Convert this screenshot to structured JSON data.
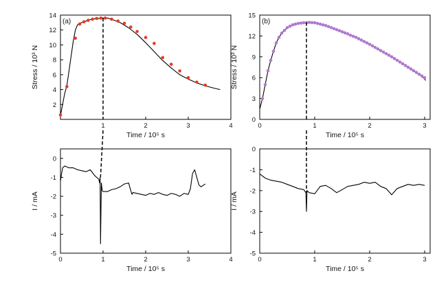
{
  "chart_data": [
    {
      "id": "a-stress",
      "type": "line",
      "panel_label": "(a)",
      "xlabel": "Time / 10⁵ s",
      "ylabel": "Stress / 10³ N",
      "xlim": [
        0,
        4
      ],
      "ylim": [
        0,
        14
      ],
      "xticks": [
        1,
        2,
        3,
        4
      ],
      "yticks": [
        2,
        4,
        6,
        8,
        10,
        12,
        14
      ],
      "series": [
        {
          "role": "curve",
          "color": "#000000",
          "x": [
            0,
            0.05,
            0.1,
            0.15,
            0.2,
            0.25,
            0.3,
            0.35,
            0.4,
            0.5,
            0.6,
            0.7,
            0.8,
            0.9,
            1.0,
            1.1,
            1.2,
            1.4,
            1.6,
            1.8,
            2.0,
            2.2,
            2.4,
            2.6,
            2.8,
            3.0,
            3.2,
            3.4,
            3.6,
            3.75
          ],
          "y": [
            0.5,
            2.0,
            3.5,
            4.5,
            6.5,
            8.5,
            10.5,
            12.0,
            12.7,
            13.0,
            13.2,
            13.4,
            13.5,
            13.55,
            13.6,
            13.6,
            13.45,
            13.0,
            12.3,
            11.4,
            10.3,
            9.1,
            7.9,
            6.9,
            6.0,
            5.4,
            4.9,
            4.5,
            4.2,
            4.0
          ]
        },
        {
          "role": "markers",
          "color": "#e83a1e",
          "x": [
            0.0,
            0.15,
            0.35,
            0.45,
            0.55,
            0.65,
            0.75,
            0.85,
            0.95,
            1.05,
            1.2,
            1.35,
            1.5,
            1.65,
            1.8,
            2.0,
            2.2,
            2.4,
            2.6,
            2.8,
            3.0,
            3.2,
            3.4
          ],
          "y": [
            0.6,
            4.4,
            10.9,
            12.8,
            13.1,
            13.3,
            13.45,
            13.55,
            13.6,
            13.6,
            13.45,
            13.2,
            12.9,
            12.4,
            11.8,
            11.0,
            10.2,
            8.3,
            7.4,
            6.5,
            5.6,
            5.0,
            4.6
          ]
        }
      ]
    },
    {
      "id": "a-current",
      "type": "line",
      "xlabel": "Time / 10⁵ s",
      "ylabel": "I / mA",
      "xlim": [
        0,
        4
      ],
      "ylim": [
        -5,
        0.5
      ],
      "xticks": [
        0,
        1,
        2,
        3,
        4
      ],
      "yticks": [
        0,
        -1,
        -2,
        -3,
        -4,
        -5
      ],
      "series": [
        {
          "role": "curve",
          "color": "#000000",
          "x": [
            0,
            0.02,
            0.05,
            0.1,
            0.15,
            0.2,
            0.3,
            0.4,
            0.5,
            0.6,
            0.7,
            0.75,
            0.8,
            0.85,
            0.9,
            0.92,
            0.93,
            0.94,
            0.96,
            0.98,
            1.0,
            1.1,
            1.2,
            1.3,
            1.4,
            1.5,
            1.6,
            1.65,
            1.68,
            1.7,
            1.8,
            1.9,
            2.0,
            2.1,
            2.2,
            2.3,
            2.4,
            2.5,
            2.6,
            2.7,
            2.8,
            2.9,
            3.0,
            3.05,
            3.1,
            3.15,
            3.2,
            3.25,
            3.3,
            3.4
          ],
          "y": [
            -1.2,
            -0.9,
            -0.5,
            -0.4,
            -0.45,
            -0.5,
            -0.5,
            -0.6,
            -0.65,
            -0.7,
            -0.6,
            -0.75,
            -0.9,
            -1.0,
            -1.1,
            -1.3,
            -1.0,
            -4.5,
            -1.3,
            -1.7,
            -1.75,
            -1.75,
            -1.65,
            -1.6,
            -1.5,
            -1.35,
            -1.3,
            -1.7,
            -1.9,
            -1.8,
            -1.85,
            -1.9,
            -1.95,
            -1.85,
            -1.9,
            -1.8,
            -1.9,
            -1.95,
            -1.85,
            -1.9,
            -2.0,
            -1.85,
            -1.9,
            -1.6,
            -0.8,
            -0.6,
            -1.0,
            -1.4,
            -1.5,
            -1.35
          ]
        }
      ]
    },
    {
      "id": "b-stress",
      "type": "line",
      "panel_label": "(b)",
      "xlabel": "Time / 10⁵ s",
      "ylabel": "Stress / 10³ N",
      "xlim": [
        0,
        3.1
      ],
      "ylim": [
        0,
        15
      ],
      "xticks": [
        0,
        1,
        2,
        3
      ],
      "yticks": [
        0,
        3,
        6,
        9,
        12,
        15
      ],
      "series": [
        {
          "role": "curve",
          "color": "#000000",
          "x": [
            0,
            0.05,
            0.1,
            0.15,
            0.2,
            0.25,
            0.3,
            0.35,
            0.4,
            0.5,
            0.6,
            0.7,
            0.8,
            0.9,
            1.0,
            1.2,
            1.4,
            1.6,
            1.8,
            2.0,
            2.2,
            2.4,
            2.6,
            2.8,
            2.95,
            3.02
          ],
          "y": [
            1.5,
            3.0,
            5.0,
            7.0,
            8.5,
            9.8,
            11.0,
            11.8,
            12.4,
            13.2,
            13.6,
            13.8,
            13.9,
            13.95,
            13.9,
            13.5,
            12.9,
            12.3,
            11.6,
            10.8,
            9.9,
            9.0,
            8.0,
            7.0,
            6.2,
            5.6
          ]
        },
        {
          "role": "markers",
          "color": "#b07ad0",
          "x": [
            0.05,
            0.1,
            0.15,
            0.2,
            0.25,
            0.3,
            0.35,
            0.4,
            0.45,
            0.5,
            0.55,
            0.6,
            0.65,
            0.7,
            0.75,
            0.8,
            0.85,
            0.9,
            0.95,
            1.0,
            1.05,
            1.1,
            1.15,
            1.2,
            1.25,
            1.3,
            1.35,
            1.4,
            1.45,
            1.5,
            1.55,
            1.6,
            1.65,
            1.7,
            1.75,
            1.8,
            1.85,
            1.9,
            1.95,
            2.0,
            2.05,
            2.1,
            2.15,
            2.2,
            2.25,
            2.3,
            2.35,
            2.4,
            2.45,
            2.5,
            2.55,
            2.6,
            2.65,
            2.7,
            2.75,
            2.8,
            2.85,
            2.9,
            2.95,
            3.0
          ],
          "y": [
            3.0,
            5.0,
            7.0,
            8.5,
            9.8,
            11.0,
            11.8,
            12.4,
            12.8,
            13.2,
            13.4,
            13.6,
            13.7,
            13.8,
            13.85,
            13.9,
            13.92,
            13.95,
            13.92,
            13.9,
            13.8,
            13.7,
            13.6,
            13.5,
            13.35,
            13.2,
            13.05,
            12.9,
            12.75,
            12.6,
            12.45,
            12.3,
            12.1,
            11.95,
            11.8,
            11.6,
            11.4,
            11.2,
            11.0,
            10.8,
            10.58,
            10.35,
            10.13,
            9.9,
            9.68,
            9.45,
            9.23,
            9.0,
            8.75,
            8.5,
            8.25,
            8.0,
            7.75,
            7.5,
            7.25,
            7.0,
            6.75,
            6.5,
            6.25,
            6.0
          ]
        }
      ]
    },
    {
      "id": "b-current",
      "type": "line",
      "xlabel": "Time / 10⁵ s",
      "ylabel": "I / mA",
      "xlim": [
        0,
        3.1
      ],
      "ylim": [
        -5,
        0
      ],
      "xticks": [
        0,
        1,
        2,
        3
      ],
      "yticks": [
        0,
        -1,
        -2,
        -3,
        -4,
        -5
      ],
      "series": [
        {
          "role": "curve",
          "color": "#000000",
          "x": [
            0,
            0.05,
            0.1,
            0.2,
            0.3,
            0.4,
            0.5,
            0.6,
            0.7,
            0.8,
            0.84,
            0.85,
            0.86,
            0.9,
            1.0,
            1.1,
            1.2,
            1.3,
            1.4,
            1.5,
            1.6,
            1.7,
            1.8,
            1.9,
            2.0,
            2.1,
            2.2,
            2.3,
            2.4,
            2.5,
            2.6,
            2.7,
            2.8,
            2.9,
            3.0
          ],
          "y": [
            -1.2,
            -1.3,
            -1.4,
            -1.5,
            -1.55,
            -1.6,
            -1.7,
            -1.8,
            -1.9,
            -1.95,
            -2.1,
            -3.0,
            -2.0,
            -2.1,
            -2.15,
            -1.8,
            -1.75,
            -1.9,
            -2.1,
            -1.95,
            -1.8,
            -1.75,
            -1.7,
            -1.6,
            -1.65,
            -1.6,
            -1.8,
            -1.9,
            -2.2,
            -1.9,
            -1.8,
            -1.7,
            -1.75,
            -1.7,
            -1.75
          ]
        }
      ]
    }
  ]
}
